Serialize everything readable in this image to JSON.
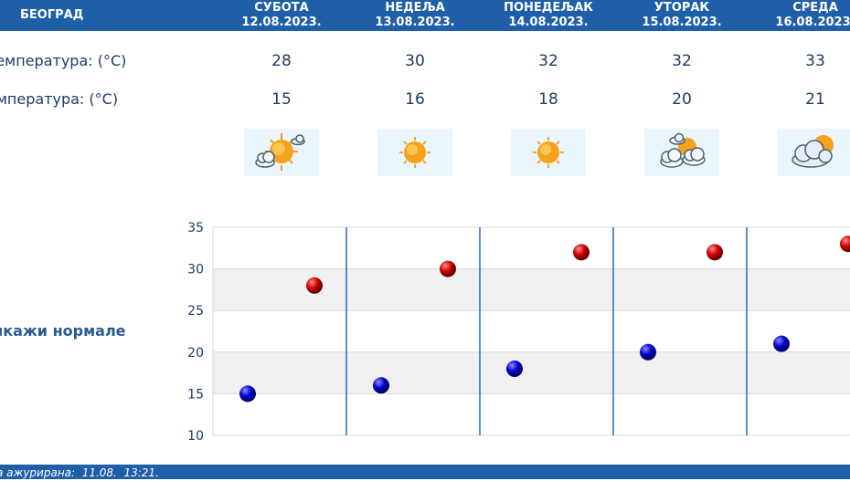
{
  "header": {
    "city": "БЕОГРАД",
    "days": [
      {
        "name": "СУБОТА",
        "date": "12.08.2023."
      },
      {
        "name": "НЕДЕЉА",
        "date": "13.08.2023."
      },
      {
        "name": "ПОНЕДЕЉАК",
        "date": "14.08.2023."
      },
      {
        "name": "УТОРАК",
        "date": "15.08.2023."
      },
      {
        "name": "СРЕДА",
        "date": "16.08.2023."
      }
    ]
  },
  "rows": {
    "max_label": "температура: (°C)",
    "min_label": "емпература: (°C)",
    "icon_label": ":"
  },
  "forecast": {
    "max": [
      "28",
      "30",
      "32",
      "32",
      "33"
    ],
    "min": [
      "15",
      "16",
      "18",
      "20",
      "21"
    ],
    "icons": [
      "sun-cloud-icon",
      "sun-icon",
      "sun-icon",
      "partly-cloudy-icon",
      "cloudy-sun-icon"
    ]
  },
  "normals_link": "икажи нормале",
  "chart_data": {
    "type": "scatter",
    "ylim": [
      10,
      35
    ],
    "yticks": [
      "35",
      "30",
      "25",
      "20",
      "15",
      "10"
    ],
    "series": [
      {
        "values": [
          28,
          30,
          32,
          32,
          33
        ],
        "color": "#cc0000"
      },
      {
        "values": [
          15,
          16,
          18,
          20,
          21
        ],
        "color": "#0000cc"
      }
    ]
  },
  "footer": {
    "text": "а ажурирана:  11.08.  13:21."
  }
}
